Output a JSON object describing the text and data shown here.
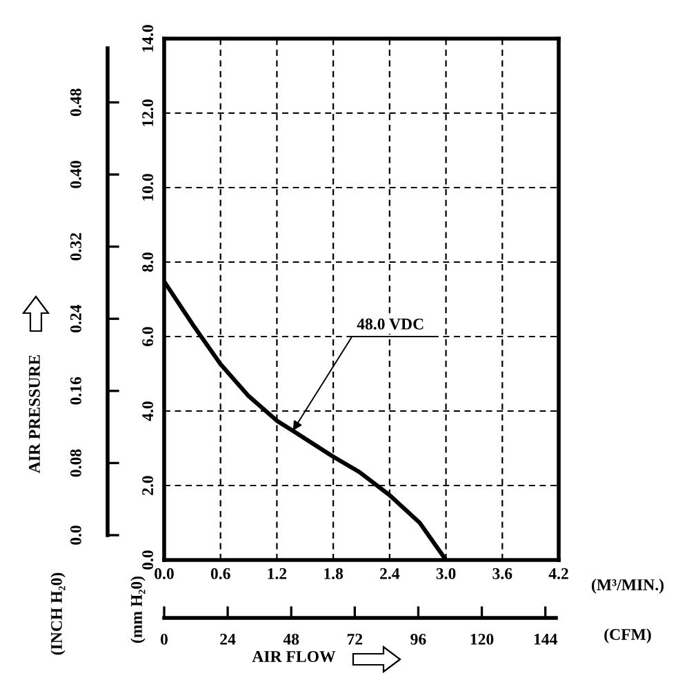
{
  "chart_data": {
    "type": "line",
    "x": [
      0,
      0.31,
      0.6,
      0.9,
      1.2,
      1.37,
      1.79,
      2.08,
      2.4,
      2.72,
      3.0
    ],
    "series": [
      {
        "name": "48.0 VDC",
        "color": "#000000",
        "values": [
          7.48,
          6.3,
          5.26,
          4.4,
          3.74,
          3.47,
          2.79,
          2.36,
          1.74,
          1.0,
          0
        ]
      }
    ],
    "xlim": [
      0,
      4.2
    ],
    "xticks": [
      {
        "value": 0,
        "label": "0.0"
      },
      0.6,
      1.2,
      1.8,
      2.4,
      {
        "value": 3,
        "label": "3.0"
      },
      3.6,
      4.2
    ],
    "ylim": [
      0,
      14
    ],
    "yticks": [
      {
        "value": 0,
        "label": "0.0"
      },
      {
        "value": 2,
        "label": "2.0"
      },
      {
        "value": 4,
        "label": "4.0"
      },
      {
        "value": 6,
        "label": "6.0"
      },
      {
        "value": 8,
        "label": "8.0"
      },
      {
        "value": 10,
        "label": "10.0"
      },
      {
        "value": 12,
        "label": "12.0"
      },
      {
        "value": 14,
        "label": "14.0"
      }
    ],
    "y2lim": [
      0,
      0.54
    ],
    "y2ticks": [
      {
        "value": 0,
        "label": "0.0"
      },
      0.08,
      0.16,
      0.24,
      0.32,
      {
        "value": 0.4,
        "label": "0.40"
      },
      0.48
    ],
    "x2lim": [
      0,
      148
    ],
    "x2ticks": [
      0,
      24,
      48,
      72,
      96,
      120,
      144
    ],
    "xlabel": "(M³/MIN.)",
    "x2label": "(CFM)",
    "ylabel": "(mm H₂0)",
    "y2label": "(INCH H₂0)",
    "annotations": [
      "AIR PRESSURE",
      "AIR FLOW"
    ],
    "grid": true,
    "line_style": "solid",
    "marker": "none",
    "legend": false
  }
}
